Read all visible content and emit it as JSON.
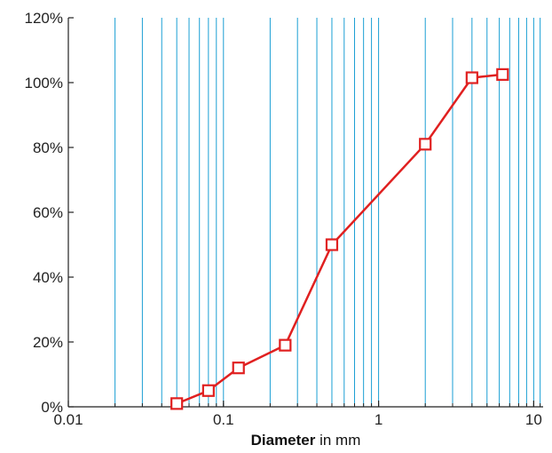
{
  "chart_data": {
    "type": "line",
    "x_scale": "log",
    "xlim": [
      0.01,
      11.5
    ],
    "ylim": [
      0,
      120
    ],
    "xticks": [
      {
        "value": 0.01,
        "label": "0.01"
      },
      {
        "value": 0.1,
        "label": "0.1"
      },
      {
        "value": 1,
        "label": "1"
      },
      {
        "value": 10,
        "label": "10"
      }
    ],
    "yticks": [
      {
        "value": 0,
        "label": "0%"
      },
      {
        "value": 20,
        "label": "20%"
      },
      {
        "value": 40,
        "label": "40%"
      },
      {
        "value": 60,
        "label": "60%"
      },
      {
        "value": 80,
        "label": "80%"
      },
      {
        "value": 100,
        "label": "100%"
      },
      {
        "value": 120,
        "label": "120%"
      }
    ],
    "gridlines_x": [
      0.02,
      0.03,
      0.04,
      0.05,
      0.06,
      0.07,
      0.08,
      0.09,
      0.1,
      0.2,
      0.3,
      0.4,
      0.5,
      0.6,
      0.7,
      0.8,
      0.9,
      1,
      2,
      3,
      4,
      5,
      6,
      7,
      8,
      9,
      10,
      11
    ],
    "grid": "vertical",
    "xlabel_bold": "Diameter",
    "xlabel_rest": " in mm",
    "ylabel": "",
    "series": [
      {
        "marker": "square-open",
        "color": "#e02020",
        "x": [
          0.05,
          0.08,
          0.125,
          0.25,
          0.5,
          2,
          4,
          6.3
        ],
        "y": [
          1,
          5,
          12,
          19,
          50,
          81,
          101.5,
          102.5
        ]
      }
    ],
    "colors": {
      "grid": "#1a9fd4",
      "axis": "#222222",
      "series": "#e02020"
    }
  }
}
